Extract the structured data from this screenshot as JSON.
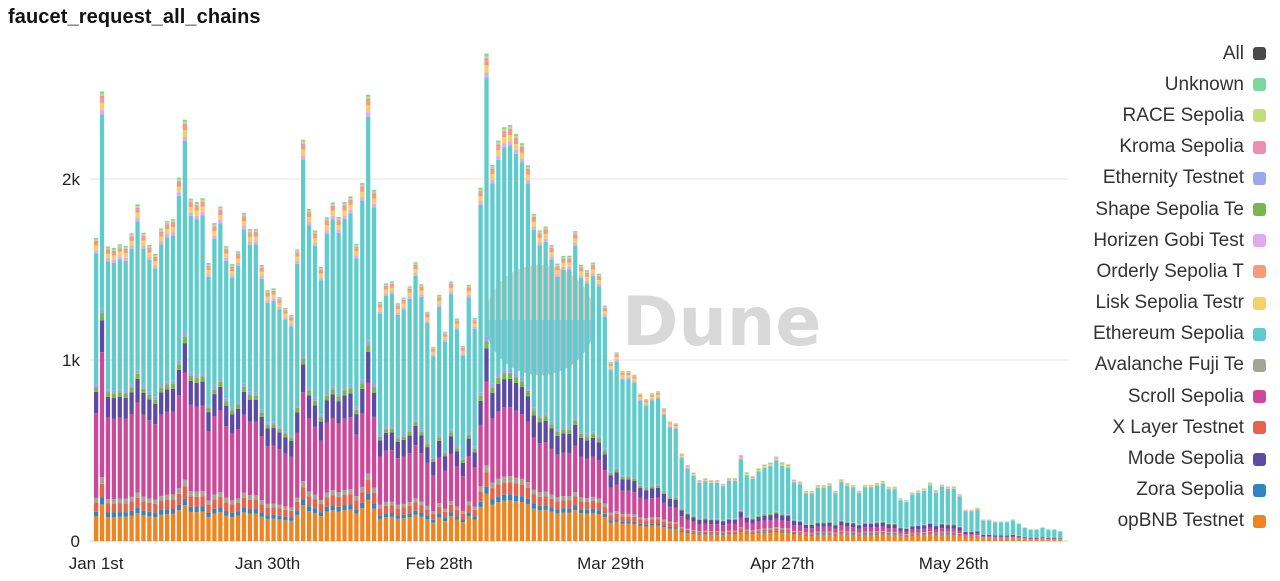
{
  "title": "faucet_request_all_chains",
  "watermark": "Dune",
  "chart_data": {
    "type": "bar",
    "stacked": true,
    "title": "faucet_request_all_chains",
    "x_start_date": "Jan 1st",
    "x_tick_labels": [
      "Jan 1st",
      "Jan 30th",
      "Feb 28th",
      "Mar 29th",
      "Apr 27th",
      "May 26th"
    ],
    "y_tick_labels": [
      "0",
      "1k",
      "2k"
    ],
    "ylim": [
      0,
      2600
    ],
    "grid": "horizontal",
    "legend_position": "right",
    "legend": [
      {
        "name": "All",
        "color": "#4a4a4a"
      },
      {
        "name": "Unknown",
        "color": "#7dd8a0"
      },
      {
        "name": "RACE Sepolia",
        "color": "#c6dc7a"
      },
      {
        "name": "Kroma Sepolia",
        "color": "#f08cb0"
      },
      {
        "name": "Ethernity Testnet",
        "color": "#9aa7ec"
      },
      {
        "name": "Shape Sepolia Te",
        "color": "#77b84c"
      },
      {
        "name": "Horizen Gobi Test",
        "color": "#dfaaee"
      },
      {
        "name": "Orderly Sepolia T",
        "color": "#f59a7a"
      },
      {
        "name": "Lisk Sepolia Testr",
        "color": "#f2d266"
      },
      {
        "name": "Ethereum Sepolia",
        "color": "#5fcbcb"
      },
      {
        "name": "Avalanche Fuji Te",
        "color": "#a5a596"
      },
      {
        "name": "Scroll Sepolia",
        "color": "#cd479b"
      },
      {
        "name": "X Layer Testnet",
        "color": "#e8614a"
      },
      {
        "name": "Mode Sepolia",
        "color": "#5c4ba6"
      },
      {
        "name": "Zora Sepolia",
        "color": "#2e85c2"
      },
      {
        "name": "opBNB Testnet",
        "color": "#f0841e"
      }
    ],
    "totals": [
      1700,
      2520,
      1650,
      1640,
      1660,
      1650,
      1720,
      1880,
      1720,
      1650,
      1600,
      1740,
      1780,
      1790,
      2020,
      2340,
      1900,
      1880,
      1900,
      1540,
      1760,
      1850,
      1630,
      1530,
      1600,
      1810,
      1720,
      1720,
      1520,
      1380,
      1390,
      1340,
      1280,
      1240,
      1600,
      2200,
      1820,
      1700,
      1500,
      1770,
      1850,
      1770,
      1850,
      1880,
      1620,
      1950,
      2430,
      1910,
      1300,
      1400,
      1410,
      1290,
      1320,
      1380,
      1510,
      1390,
      1240,
      1050,
      1330,
      1130,
      1400,
      1200,
      1050,
      1380,
      1200,
      1900,
      2620,
      2020,
      2150,
      2220,
      2230,
      2180,
      2130,
      2010,
      1750,
      1660,
      1680,
      1580,
      1480,
      1520,
      1520,
      1650,
      1470,
      1440,
      1480,
      1420,
      1250,
      950,
      1000,
      900,
      900,
      880,
      780,
      750,
      780,
      790,
      700,
      630,
      620,
      460,
      400,
      360,
      320,
      330,
      320,
      320,
      300,
      330,
      330,
      450,
      360,
      340,
      380,
      400,
      410,
      440,
      410,
      400,
      320,
      310,
      260,
      260,
      290,
      290,
      300,
      260,
      320,
      300,
      290,
      260,
      290,
      290,
      300,
      310,
      280,
      280,
      220,
      210,
      250,
      260,
      270,
      300,
      260,
      290,
      280,
      280,
      240,
      160,
      160,
      170,
      110,
      110,
      100,
      100,
      100,
      110,
      90,
      70,
      60,
      60,
      70,
      60,
      60,
      50
    ],
    "composition": [
      {
        "name": "opBNB Testnet",
        "share": 0.08
      },
      {
        "name": "Zora Sepolia",
        "share": 0.015
      },
      {
        "name": "X Layer Testnet",
        "share": 0.03
      },
      {
        "name": "Avalanche Fuji Te",
        "share": 0.015
      },
      {
        "name": "Scroll Sepolia",
        "share": 0.22
      },
      {
        "name": "Mode Sepolia",
        "share": 0.07
      },
      {
        "name": "Shape Sepolia Te",
        "share": 0.015
      },
      {
        "name": "Ethernity Testnet",
        "share": 0.01
      },
      {
        "name": "Ethereum Sepolia",
        "share": 0.5
      },
      {
        "name": "Horizen Gobi Test",
        "share": 0.01
      },
      {
        "name": "Lisk Sepolia Testr",
        "share": 0.015
      },
      {
        "name": "Orderly Sepolia T",
        "share": 0.01
      },
      {
        "name": "Kroma Sepolia",
        "share": 0.005
      },
      {
        "name": "RACE Sepolia",
        "share": 0.005
      },
      {
        "name": "Unknown",
        "share": 0.005
      }
    ]
  }
}
